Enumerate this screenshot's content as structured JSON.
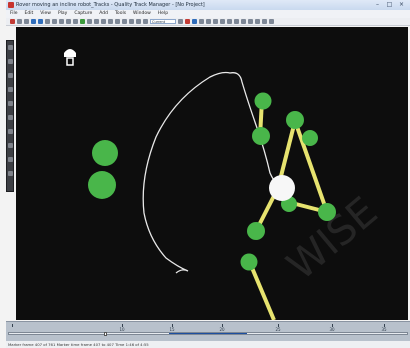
{
  "window": {
    "title": "Rover moving an incline robot_Tracks - Quality Track Manager - [No Project]",
    "controls": {
      "minimize": "–",
      "maximize": "□",
      "close": "×"
    }
  },
  "menu": [
    "File",
    "Edit",
    "View",
    "Play",
    "Capture",
    "Add",
    "Tools",
    "Window",
    "Help"
  ],
  "toolbar": {
    "field_label": "Current Frame"
  },
  "side_tools": [
    "select-tool",
    "move-tool",
    "track-tool",
    "zoom-tool",
    "pan-tool",
    "draw-tool",
    "measure-tool",
    "text-tool",
    "eraser-tool",
    "settings-tool"
  ],
  "stage": {
    "watermark": "WISE",
    "colors": {
      "background": "#0d0d0d",
      "ball": "#49b64a",
      "rod": "#e7e36f",
      "trail": "#ffffff"
    }
  },
  "timeline": {
    "tick_labels": [
      "10",
      "15",
      "20",
      "25",
      "30",
      "35"
    ],
    "position": 0.24
  },
  "status": {
    "text": "Marker frame 407 of 761  Marker time frame 407 to 407 Time 1:46 of 4:55"
  }
}
